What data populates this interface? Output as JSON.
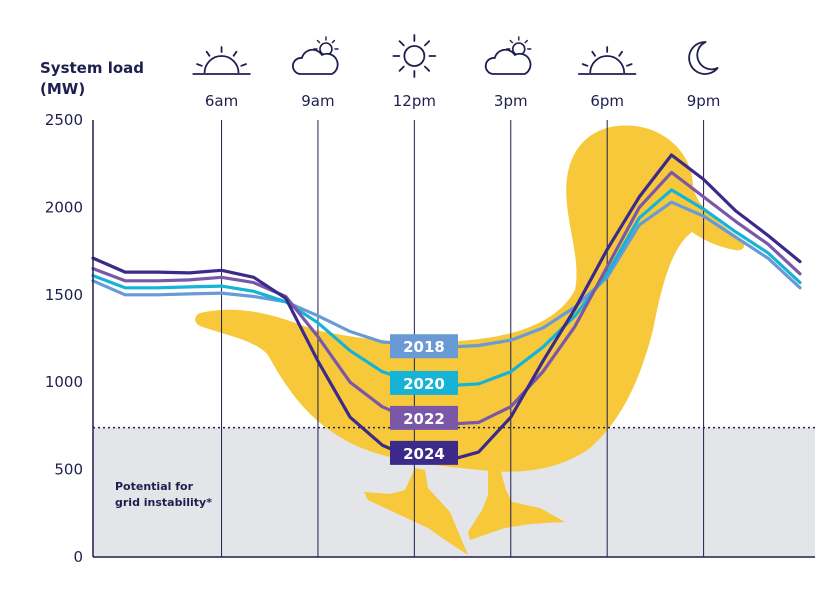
{
  "chart_data": {
    "type": "line",
    "ylabel_lines": [
      "System load",
      "(MW)"
    ],
    "ylim": [
      0,
      2500
    ],
    "yticks": [
      "0",
      "500",
      "1000",
      "1500",
      "2000",
      "2500"
    ],
    "ytick_values": [
      0,
      500,
      1000,
      1500,
      2000,
      2500
    ],
    "x_hours": [
      2,
      3,
      4,
      5,
      6,
      7,
      8,
      9,
      10,
      11,
      12,
      13,
      14,
      15,
      16,
      17,
      18,
      19,
      20,
      21,
      22,
      23,
      24
    ],
    "xlim": [
      2,
      24
    ],
    "time_markers": [
      {
        "label": "6am",
        "hour": 6,
        "icon": "sunrise-icon"
      },
      {
        "label": "9am",
        "hour": 9,
        "icon": "partly-cloudy-icon"
      },
      {
        "label": "12pm",
        "hour": 12,
        "icon": "sun-icon"
      },
      {
        "label": "3pm",
        "hour": 15,
        "icon": "partly-cloudy-icon"
      },
      {
        "label": "6pm",
        "hour": 18,
        "icon": "sunset-icon"
      },
      {
        "label": "9pm",
        "hour": 21,
        "icon": "moon-icon"
      }
    ],
    "threshold": 740,
    "threshold_label_lines": [
      "Potential for",
      "grid instability*"
    ],
    "series": [
      {
        "name": "2018",
        "color": "#6a9ad6",
        "badge_hour": 12.3,
        "badge_value": 1200,
        "values": [
          1580,
          1500,
          1500,
          1505,
          1510,
          1490,
          1460,
          1380,
          1290,
          1230,
          1215,
          1200,
          1210,
          1240,
          1310,
          1430,
          1600,
          1900,
          2030,
          1950,
          1830,
          1710,
          1540
        ]
      },
      {
        "name": "2020",
        "color": "#17b3d6",
        "badge_hour": 12.3,
        "badge_value": 990,
        "values": [
          1610,
          1540,
          1540,
          1545,
          1550,
          1520,
          1460,
          1340,
          1180,
          1060,
          1000,
          980,
          990,
          1060,
          1200,
          1380,
          1620,
          1940,
          2100,
          1990,
          1860,
          1740,
          1570
        ]
      },
      {
        "name": "2022",
        "color": "#7b57a8",
        "badge_hour": 12.3,
        "badge_value": 790,
        "values": [
          1650,
          1580,
          1580,
          1585,
          1600,
          1570,
          1490,
          1260,
          1000,
          860,
          780,
          760,
          770,
          860,
          1060,
          1320,
          1660,
          2000,
          2200,
          2060,
          1920,
          1790,
          1620
        ]
      },
      {
        "name": "2024",
        "color": "#3c2a8a",
        "badge_hour": 12.3,
        "badge_value": 590,
        "values": [
          1710,
          1630,
          1630,
          1625,
          1640,
          1600,
          1480,
          1120,
          800,
          640,
          560,
          550,
          600,
          800,
          1120,
          1420,
          1760,
          2060,
          2300,
          2160,
          1980,
          1840,
          1690
        ]
      }
    ],
    "grid": false,
    "legend": "labels-on-lines",
    "colors": {
      "duck": "#f7c93a",
      "zone": "#e3e5e9",
      "axis": "#1f1f4f",
      "threshold_line": "#1f1f4f"
    }
  }
}
